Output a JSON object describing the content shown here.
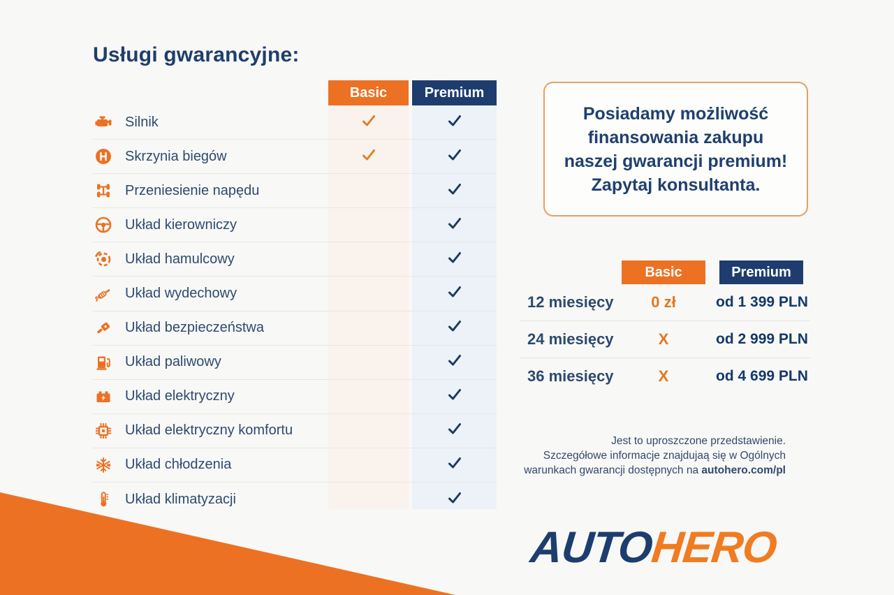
{
  "page": {
    "title": "Usługi gwarancyjne:"
  },
  "colors": {
    "orange": "#ED7123",
    "navy": "#1E3D6E",
    "text_navy": "#2E4A6E",
    "basic_column_tint": "#FAF2EC",
    "premium_column_tint": "#EDF1F8",
    "check_orange": "#DD7E2F",
    "check_navy": "#1C3A5E",
    "promo_border": "#E3A164",
    "logo_navy": "#1C3E6E",
    "logo_orange": "#F07C21"
  },
  "comparison_table": {
    "columns": [
      {
        "label": "Basic"
      },
      {
        "label": "Premium"
      }
    ],
    "rows": [
      {
        "icon": "engine-icon",
        "label": "Silnik",
        "basic": true,
        "premium": true
      },
      {
        "icon": "gearbox-icon",
        "label": "Skrzynia biegów",
        "basic": true,
        "premium": true
      },
      {
        "icon": "drivetrain-icon",
        "label": "Przeniesienie napędu",
        "basic": false,
        "premium": true
      },
      {
        "icon": "steering-wheel-icon",
        "label": "Układ kierowniczy",
        "basic": false,
        "premium": true
      },
      {
        "icon": "brake-disc-icon",
        "label": "Układ hamulcowy",
        "basic": false,
        "premium": true
      },
      {
        "icon": "exhaust-icon",
        "label": "Układ wydechowy",
        "basic": false,
        "premium": true
      },
      {
        "icon": "seatbelt-icon",
        "label": "Układ bezpieczeństwa",
        "basic": false,
        "premium": true
      },
      {
        "icon": "fuel-pump-icon",
        "label": "Układ paliwowy",
        "basic": false,
        "premium": true
      },
      {
        "icon": "battery-icon",
        "label": "Układ elektryczny",
        "basic": false,
        "premium": true
      },
      {
        "icon": "chip-icon",
        "label": "Układ elektryczny komfortu",
        "basic": false,
        "premium": true
      },
      {
        "icon": "snowflake-icon",
        "label": "Układ chłodzenia",
        "basic": false,
        "premium": true
      },
      {
        "icon": "thermometer-icon",
        "label": "Układ klimatyzacji",
        "basic": false,
        "premium": true
      }
    ]
  },
  "promo_box": {
    "lines": [
      "Posiadamy możliwość",
      "finansowania zakupu",
      "naszej gwarancji premium!",
      "Zapytaj konsultanta."
    ]
  },
  "pricing_table": {
    "columns": [
      {
        "label": "Basic"
      },
      {
        "label": "Premium"
      }
    ],
    "rows": [
      {
        "period": "12 miesięcy",
        "basic": "0 zł",
        "premium": "od 1 399 PLN"
      },
      {
        "period": "24 miesięcy",
        "basic": "X",
        "premium": "od 2 999 PLN"
      },
      {
        "period": "36 miesięcy",
        "basic": "X",
        "premium": "od 4 699 PLN"
      }
    ]
  },
  "disclaimer": {
    "line1": "Jest to uproszczone przedstawienie.",
    "line2": "Szczegółowe informacje znajdujaą się w Ogólnych",
    "line3_prefix": "warunkach gwarancji dostępnych na ",
    "line3_bold": "autohero.com/pl"
  },
  "logo": {
    "part1": "AUTO",
    "part2": "HERO"
  }
}
